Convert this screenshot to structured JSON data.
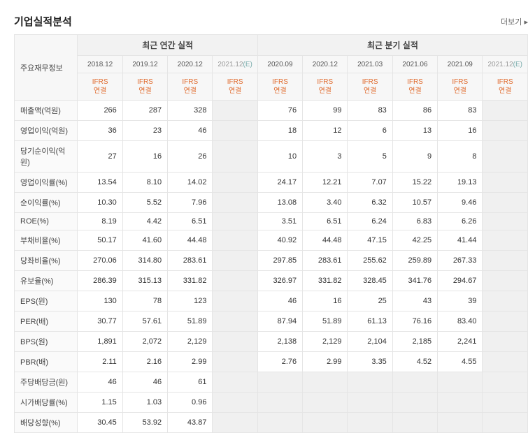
{
  "title": "기업실적분석",
  "more": "더보기",
  "row_header_title": "주요재무정보",
  "annual_header": "최근 연간 실적",
  "quarter_header": "최근 분기 실적",
  "ifrs_label": "IFRS\n연결",
  "columns": {
    "annual": [
      "2018.12",
      "2019.12",
      "2020.12",
      "2021.12(E)"
    ],
    "quarter": [
      "2020.09",
      "2020.12",
      "2021.03",
      "2021.06",
      "2021.09",
      "2021.12(E)"
    ]
  },
  "metrics": [
    {
      "label": "매출액(억원)",
      "annual": [
        "266",
        "287",
        "328",
        ""
      ],
      "quarter": [
        "76",
        "99",
        "83",
        "86",
        "83",
        ""
      ]
    },
    {
      "label": "영업이익(억원)",
      "annual": [
        "36",
        "23",
        "46",
        ""
      ],
      "quarter": [
        "18",
        "12",
        "6",
        "13",
        "16",
        ""
      ]
    },
    {
      "label": "당기순이익(억원)",
      "annual": [
        "27",
        "16",
        "26",
        ""
      ],
      "quarter": [
        "10",
        "3",
        "5",
        "9",
        "8",
        ""
      ]
    },
    {
      "label": "영업이익률(%)",
      "annual": [
        "13.54",
        "8.10",
        "14.02",
        ""
      ],
      "quarter": [
        "24.17",
        "12.21",
        "7.07",
        "15.22",
        "19.13",
        ""
      ]
    },
    {
      "label": "순이익률(%)",
      "annual": [
        "10.30",
        "5.52",
        "7.96",
        ""
      ],
      "quarter": [
        "13.08",
        "3.40",
        "6.32",
        "10.57",
        "9.46",
        ""
      ]
    },
    {
      "label": "ROE(%)",
      "annual": [
        "8.19",
        "4.42",
        "6.51",
        ""
      ],
      "quarter": [
        "3.51",
        "6.51",
        "6.24",
        "6.83",
        "6.26",
        ""
      ]
    },
    {
      "label": "부채비율(%)",
      "annual": [
        "50.17",
        "41.60",
        "44.48",
        ""
      ],
      "quarter": [
        "40.92",
        "44.48",
        "47.15",
        "42.25",
        "41.44",
        ""
      ]
    },
    {
      "label": "당좌비율(%)",
      "annual": [
        "270.06",
        "314.80",
        "283.61",
        ""
      ],
      "quarter": [
        "297.85",
        "283.61",
        "255.62",
        "259.89",
        "267.33",
        ""
      ]
    },
    {
      "label": "유보율(%)",
      "annual": [
        "286.39",
        "315.13",
        "331.82",
        ""
      ],
      "quarter": [
        "326.97",
        "331.82",
        "328.45",
        "341.76",
        "294.67",
        ""
      ]
    },
    {
      "label": "EPS(원)",
      "annual": [
        "130",
        "78",
        "123",
        ""
      ],
      "quarter": [
        "46",
        "16",
        "25",
        "43",
        "39",
        ""
      ]
    },
    {
      "label": "PER(배)",
      "annual": [
        "30.77",
        "57.61",
        "51.89",
        ""
      ],
      "quarter": [
        "87.94",
        "51.89",
        "61.13",
        "76.16",
        "83.40",
        ""
      ]
    },
    {
      "label": "BPS(원)",
      "annual": [
        "1,891",
        "2,072",
        "2,129",
        ""
      ],
      "quarter": [
        "2,138",
        "2,129",
        "2,104",
        "2,185",
        "2,241",
        ""
      ]
    },
    {
      "label": "PBR(배)",
      "annual": [
        "2.11",
        "2.16",
        "2.99",
        ""
      ],
      "quarter": [
        "2.76",
        "2.99",
        "3.35",
        "4.52",
        "4.55",
        ""
      ]
    },
    {
      "label": "주당배당금(원)",
      "annual": [
        "46",
        "46",
        "61",
        ""
      ],
      "quarter": [
        "",
        "",
        "",
        "",
        "",
        ""
      ],
      "greyQuarter": true
    },
    {
      "label": "시가배당률(%)",
      "annual": [
        "1.15",
        "1.03",
        "0.96",
        ""
      ],
      "quarter": [
        "",
        "",
        "",
        "",
        "",
        ""
      ],
      "greyQuarter": true
    },
    {
      "label": "배당성향(%)",
      "annual": [
        "30.45",
        "53.92",
        "43.87",
        ""
      ],
      "quarter": [
        "",
        "",
        "",
        "",
        "",
        ""
      ],
      "greyQuarter": true
    }
  ],
  "styles": {
    "accent_color": "#e06b2e",
    "border_color": "#e5e5e5",
    "header_bg": "#f7f7f7",
    "row_head_bg": "#fafafa",
    "empty_bg": "#f0f0f0"
  }
}
